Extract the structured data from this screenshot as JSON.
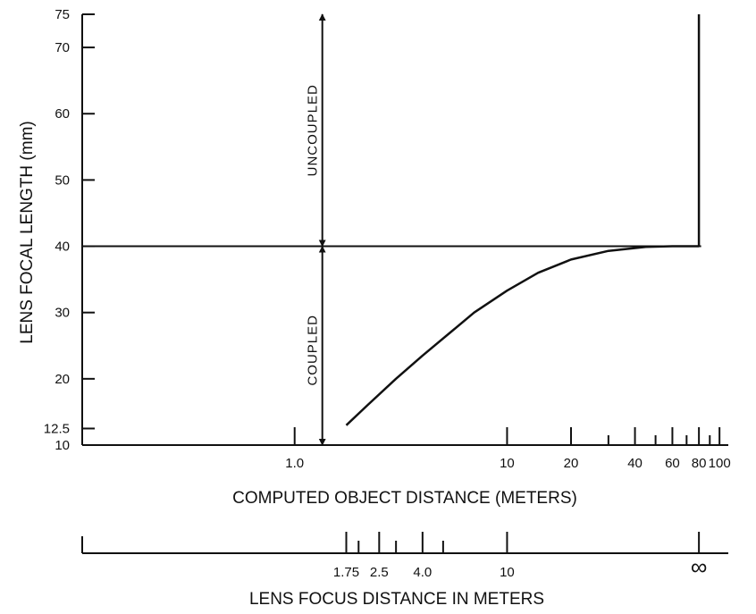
{
  "chart_data": {
    "type": "line",
    "xlabel": "COMPUTED OBJECT DISTANCE (METERS)",
    "ylabel": "LENS FOCAL LENGTH (mm)",
    "x_scale": "log",
    "xlim": [
      0.1,
      110
    ],
    "ylim": [
      10,
      75
    ],
    "y_ticks": [
      {
        "value": 10,
        "label": "10"
      },
      {
        "value": 12.5,
        "label": "12.5"
      },
      {
        "value": 20,
        "label": "20"
      },
      {
        "value": 30,
        "label": "30"
      },
      {
        "value": 40,
        "label": "40"
      },
      {
        "value": 50,
        "label": "50"
      },
      {
        "value": 60,
        "label": "60"
      },
      {
        "value": 70,
        "label": "70"
      },
      {
        "value": 75,
        "label": "75"
      }
    ],
    "x_ticks_major": [
      {
        "value": 1,
        "label": "1.0"
      },
      {
        "value": 10,
        "label": "10"
      },
      {
        "value": 20,
        "label": "20"
      },
      {
        "value": 40,
        "label": "40"
      },
      {
        "value": 60,
        "label": "60"
      },
      {
        "value": 80,
        "label": "80"
      },
      {
        "value": 100,
        "label": "100"
      }
    ],
    "x_ticks_minor": [
      30,
      50,
      70,
      90
    ],
    "series": [
      {
        "x": [
          1.75,
          2.2,
          3,
          4,
          5.5,
          7,
          10,
          14,
          20,
          30,
          45,
          60,
          80
        ],
        "y": [
          13,
          16,
          20,
          23.5,
          27.2,
          30,
          33.3,
          36,
          38,
          39.3,
          39.9,
          40,
          40
        ]
      },
      {
        "x": [
          80,
          80
        ],
        "y": [
          40,
          75
        ]
      }
    ],
    "reference_line": {
      "y": 40
    },
    "regions": [
      {
        "label": "UNCOUPLED",
        "x": 1.35,
        "y_from": 40,
        "y_to": 75
      },
      {
        "label": "COUPLED",
        "x": 1.35,
        "y_from": 10,
        "y_to": 40
      }
    ],
    "secondary_axis": {
      "title": "LENS FOCUS DISTANCE IN METERS",
      "ticks_major": [
        {
          "value": 1.75,
          "label": "1.75"
        },
        {
          "value": 2.5,
          "label": "2.5"
        },
        {
          "value": 4.0,
          "label": "4.0"
        },
        {
          "value": 10,
          "label": "10"
        },
        {
          "value": 80,
          "label": "∞"
        }
      ],
      "ticks_minor": [
        2,
        3,
        5
      ]
    }
  }
}
